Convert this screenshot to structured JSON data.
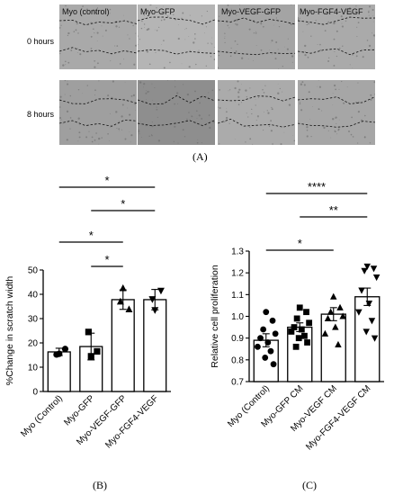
{
  "panel_a": {
    "label": "(A)",
    "row_labels": [
      "0 hours",
      "8 hours"
    ],
    "column_labels": [
      "Myo (control)",
      "Myo-GFP",
      "Myo-VEGF-GFP",
      "Myo-FGF4-VEGF"
    ]
  },
  "panel_b": {
    "label": "(B)"
  },
  "panel_c": {
    "label": "(C)"
  },
  "chart_data": [
    {
      "type": "bar",
      "ylabel": "%Change in scratch width",
      "xlabel": "",
      "categories": [
        "Myo (Control)",
        "Myo-GFP",
        "Myo-VEGF-GFP",
        "Myo-FGF4-VEGF"
      ],
      "values": [
        16.3,
        18.5,
        37.8,
        37.8
      ],
      "errors": [
        1.5,
        5.5,
        4.0,
        4.2
      ],
      "points": [
        [
          15.5,
          17.5,
          15.2
        ],
        [
          14.5,
          16.5,
          24.5
        ],
        [
          42.5,
          33.8,
          37.0
        ],
        [
          33.5,
          41.5,
          38.0
        ]
      ],
      "markers": [
        "circle",
        "square",
        "triangle",
        "triangle-down"
      ],
      "ylim": [
        0,
        50
      ],
      "yticks": [
        0,
        10,
        20,
        30,
        40,
        50
      ],
      "significance": [
        {
          "from": 0,
          "to": 3,
          "label": "*"
        },
        {
          "from": 1,
          "to": 3,
          "label": "*"
        },
        {
          "from": 0,
          "to": 2,
          "label": "*"
        },
        {
          "from": 1,
          "to": 2,
          "label": "*"
        }
      ]
    },
    {
      "type": "bar",
      "ylabel": "Relative cell proliferation",
      "xlabel": "",
      "categories": [
        "Myo (Control)",
        "Myo-GFP CM",
        "Myo-VEGF CM",
        "Myo-FGF4-VEGF CM"
      ],
      "values": [
        0.89,
        0.95,
        1.01,
        1.09
      ],
      "errors": [
        0.03,
        0.02,
        0.03,
        0.04
      ],
      "points": [
        [
          1.02,
          0.98,
          0.94,
          0.92,
          0.9,
          0.88,
          0.86,
          0.84,
          0.81,
          0.78
        ],
        [
          1.04,
          1.02,
          0.99,
          0.97,
          0.95,
          0.94,
          0.93,
          0.91,
          0.9,
          0.88,
          0.86
        ],
        [
          1.09,
          1.04,
          1.02,
          1.0,
          0.99,
          0.95,
          0.92,
          0.87
        ],
        [
          1.23,
          1.22,
          1.21,
          1.18,
          1.12,
          1.06,
          1.02,
          0.98,
          0.93,
          0.9
        ]
      ],
      "markers": [
        "circle",
        "square",
        "triangle",
        "triangle-down"
      ],
      "ylim": [
        0.7,
        1.3
      ],
      "yticks": [
        0.7,
        0.8,
        0.9,
        1.0,
        1.1,
        1.2,
        1.3
      ],
      "ytick_labels": [
        "0.7",
        "0.8",
        "0.9",
        "1.0",
        "1.1",
        "1.2",
        "1.3"
      ],
      "significance": [
        {
          "from": 0,
          "to": 3,
          "label": "****"
        },
        {
          "from": 1,
          "to": 3,
          "label": "**"
        },
        {
          "from": 0,
          "to": 2,
          "label": "*"
        }
      ]
    }
  ]
}
